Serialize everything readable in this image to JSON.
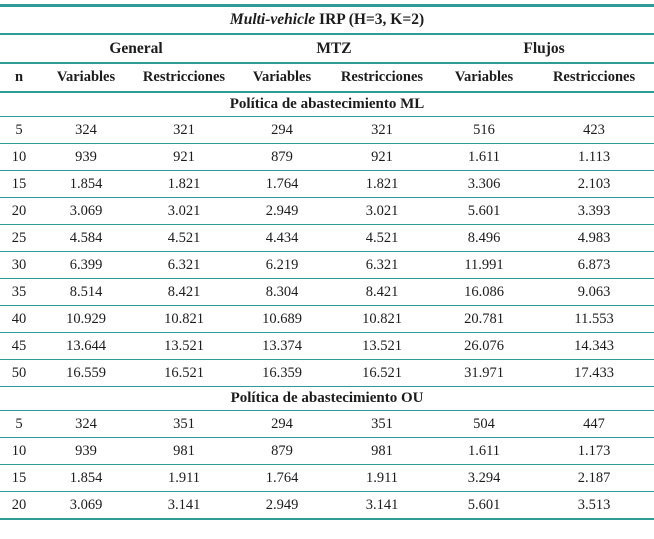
{
  "accent_color": "#2e9b96",
  "header": {
    "title_italic": "Multi-vehicle",
    "title_rest": " IRP (H=3, K=2)",
    "groups": [
      "General",
      "MTZ",
      "Flujos"
    ],
    "columns": [
      "n",
      "Variables",
      "Restricciones",
      "Variables",
      "Restricciones",
      "Variables",
      "Restricciones"
    ]
  },
  "sections": [
    {
      "label": "Política de abastecimiento ML",
      "rows": [
        {
          "n": "5",
          "cells": [
            "324",
            "321",
            "294",
            "321",
            "516",
            "423"
          ]
        },
        {
          "n": "10",
          "cells": [
            "939",
            "921",
            "879",
            "921",
            "1.611",
            "1.113"
          ]
        },
        {
          "n": "15",
          "cells": [
            "1.854",
            "1.821",
            "1.764",
            "1.821",
            "3.306",
            "2.103"
          ]
        },
        {
          "n": "20",
          "cells": [
            "3.069",
            "3.021",
            "2.949",
            "3.021",
            "5.601",
            "3.393"
          ]
        },
        {
          "n": "25",
          "cells": [
            "4.584",
            "4.521",
            "4.434",
            "4.521",
            "8.496",
            "4.983"
          ]
        },
        {
          "n": "30",
          "cells": [
            "6.399",
            "6.321",
            "6.219",
            "6.321",
            "11.991",
            "6.873"
          ]
        },
        {
          "n": "35",
          "cells": [
            "8.514",
            "8.421",
            "8.304",
            "8.421",
            "16.086",
            "9.063"
          ]
        },
        {
          "n": "40",
          "cells": [
            "10.929",
            "10.821",
            "10.689",
            "10.821",
            "20.781",
            "11.553"
          ]
        },
        {
          "n": "45",
          "cells": [
            "13.644",
            "13.521",
            "13.374",
            "13.521",
            "26.076",
            "14.343"
          ]
        },
        {
          "n": "50",
          "cells": [
            "16.559",
            "16.521",
            "16.359",
            "16.521",
            "31.971",
            "17.433"
          ]
        }
      ]
    },
    {
      "label": "Política de abastecimiento OU",
      "rows": [
        {
          "n": "5",
          "cells": [
            "324",
            "351",
            "294",
            "351",
            "504",
            "447"
          ]
        },
        {
          "n": "10",
          "cells": [
            "939",
            "981",
            "879",
            "981",
            "1.611",
            "1.173"
          ]
        },
        {
          "n": "15",
          "cells": [
            "1.854",
            "1.911",
            "1.764",
            "1.911",
            "3.294",
            "2.187"
          ]
        },
        {
          "n": "20",
          "cells": [
            "3.069",
            "3.141",
            "2.949",
            "3.141",
            "5.601",
            "3.513"
          ]
        }
      ]
    }
  ]
}
